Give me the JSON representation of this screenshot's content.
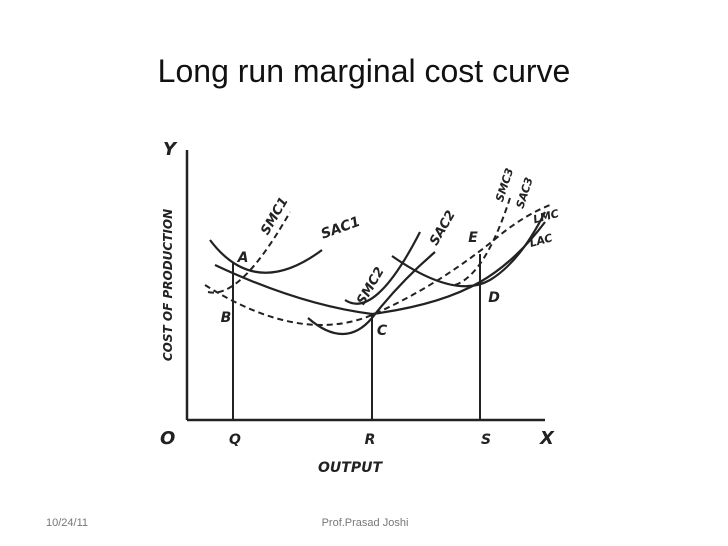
{
  "title": "Long run marginal cost curve",
  "diagram": {
    "y_axis_letter": "Y",
    "x_axis_letter": "X",
    "origin": "O",
    "y_axis_label": "COST OF PRODUCTION",
    "x_axis_label": "OUTPUT",
    "x_marks": [
      "Q",
      "R",
      "S"
    ],
    "points": [
      "A",
      "B",
      "C",
      "D",
      "E"
    ],
    "curves": [
      "SMC1",
      "SAC1",
      "SMC2",
      "SAC2",
      "SMC3",
      "SAC3",
      "LMC",
      "LAC"
    ]
  },
  "footer": {
    "date": "10/24/11",
    "author": "Prof.Prasad Joshi"
  }
}
